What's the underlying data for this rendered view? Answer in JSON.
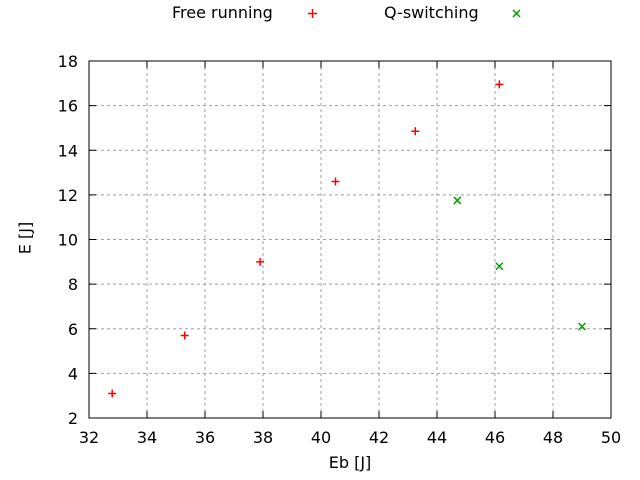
{
  "chart_data": {
    "type": "scatter",
    "title": "",
    "xlabel": "Eb [J]",
    "ylabel": "E [J]",
    "xlim": [
      32,
      50
    ],
    "ylim": [
      2,
      18
    ],
    "xticks": [
      32,
      34,
      36,
      38,
      40,
      42,
      44,
      46,
      48,
      50
    ],
    "yticks": [
      2,
      4,
      6,
      8,
      10,
      12,
      14,
      16,
      18
    ],
    "grid": true,
    "grid_color": "#a0a0a0",
    "axis_color": "#000000",
    "legend_position": "top-center",
    "series": [
      {
        "name": "Free running",
        "marker": "plus",
        "color": "#ff0000",
        "points": [
          [
            32.8,
            3.1
          ],
          [
            35.3,
            5.7
          ],
          [
            37.9,
            9.0
          ],
          [
            40.5,
            12.6
          ],
          [
            43.25,
            14.85
          ],
          [
            46.15,
            16.95
          ]
        ]
      },
      {
        "name": "Q-switching",
        "marker": "cross",
        "color": "#00a000",
        "points": [
          [
            44.7,
            11.75
          ],
          [
            46.15,
            8.8
          ],
          [
            49.0,
            6.1
          ]
        ]
      }
    ]
  }
}
